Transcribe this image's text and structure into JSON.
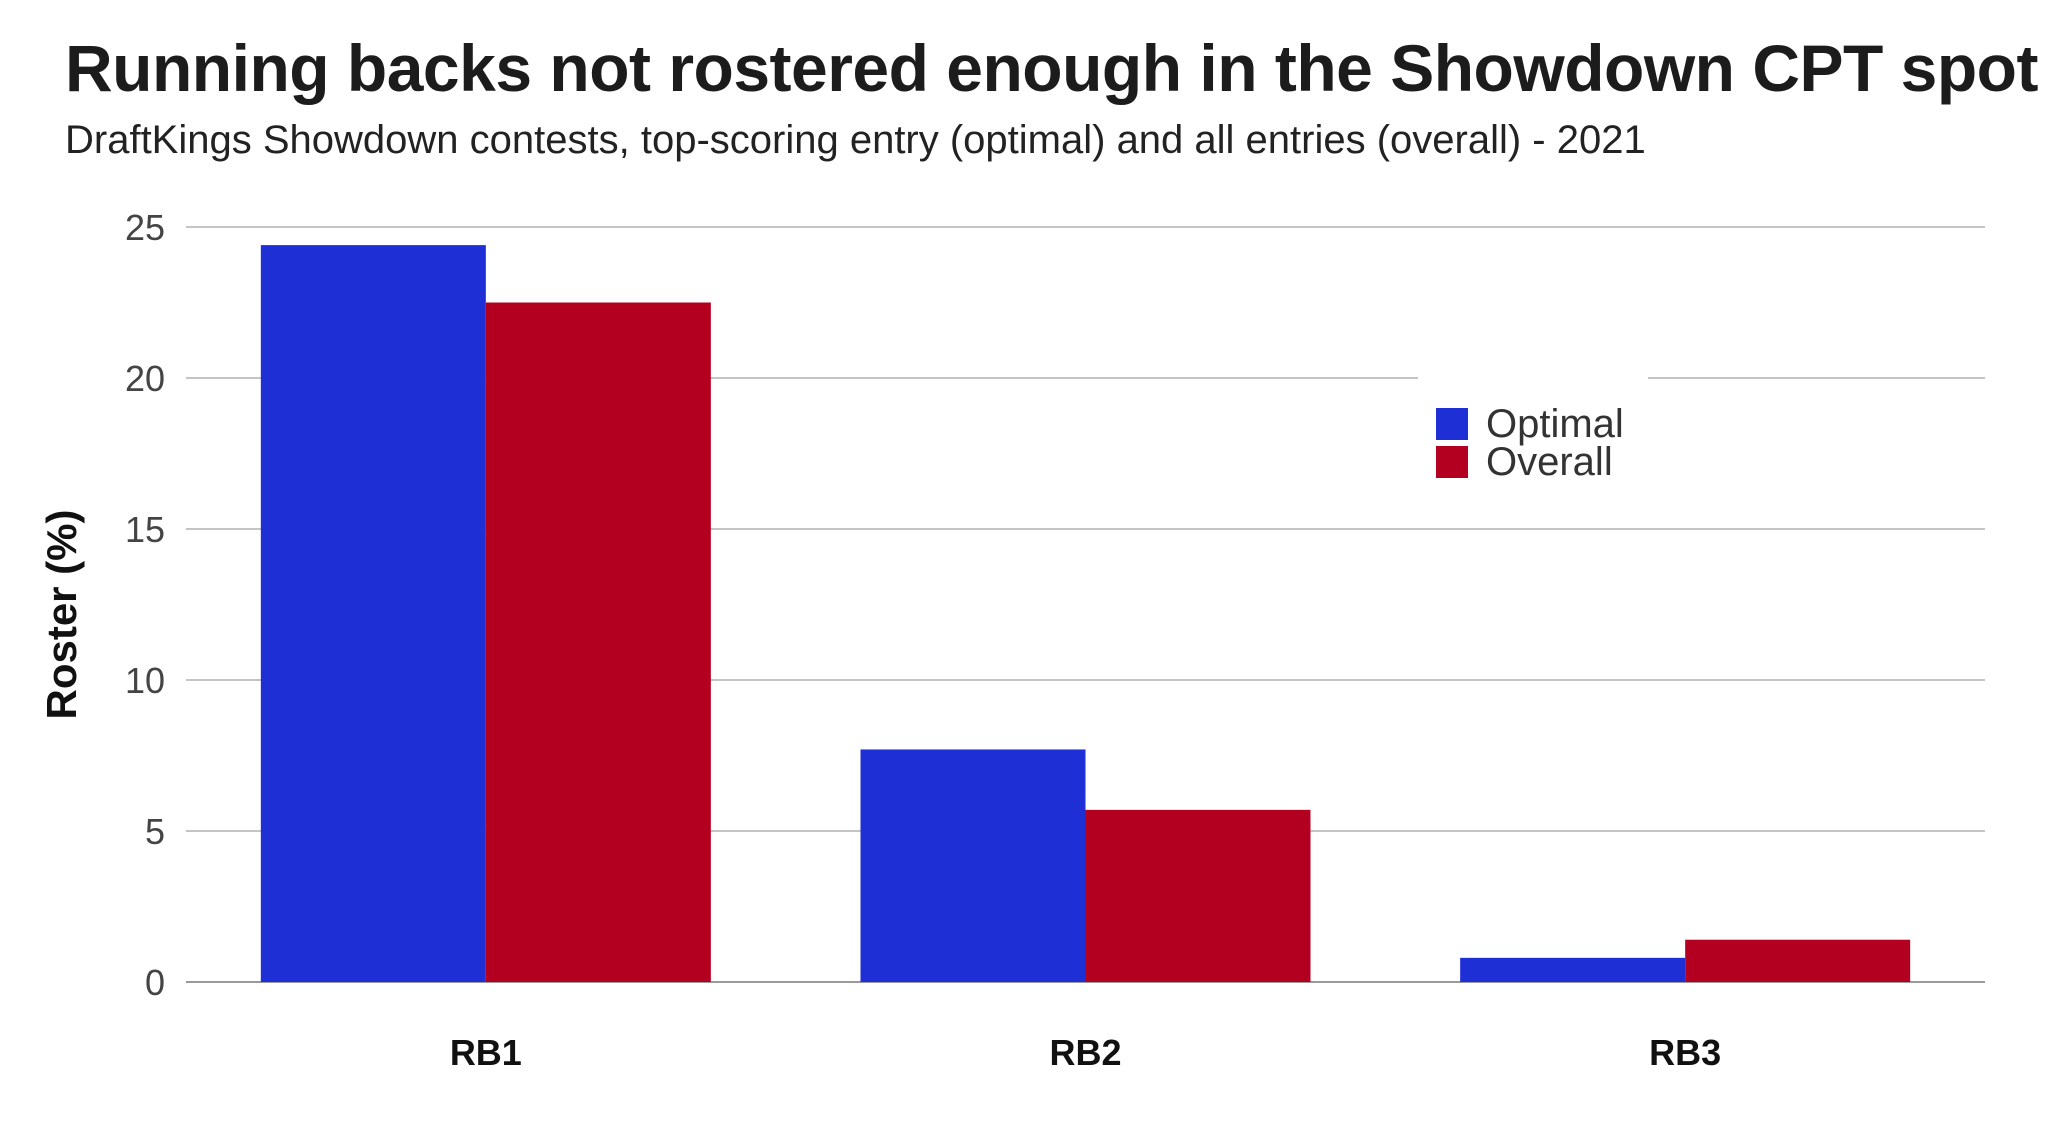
{
  "chart_data": {
    "type": "bar",
    "title": "Running backs not rostered enough in the Showdown CPT spot",
    "subtitle": "DraftKings Showdown contests, top-scoring entry (optimal) and all entries (overall) - 2021",
    "xlabel": "",
    "ylabel": "Roster (%)",
    "ylim": [
      0,
      25
    ],
    "yticks": [
      0,
      5,
      10,
      15,
      20,
      25
    ],
    "grid": true,
    "legend_position": "right",
    "categories": [
      "RB1",
      "RB2",
      "RB3"
    ],
    "series": [
      {
        "name": "Optimal",
        "color": "#1f2fd6",
        "values": [
          24.4,
          7.7,
          0.8
        ]
      },
      {
        "name": "Overall",
        "color": "#b30020",
        "values": [
          22.5,
          5.7,
          1.4
        ]
      }
    ]
  }
}
